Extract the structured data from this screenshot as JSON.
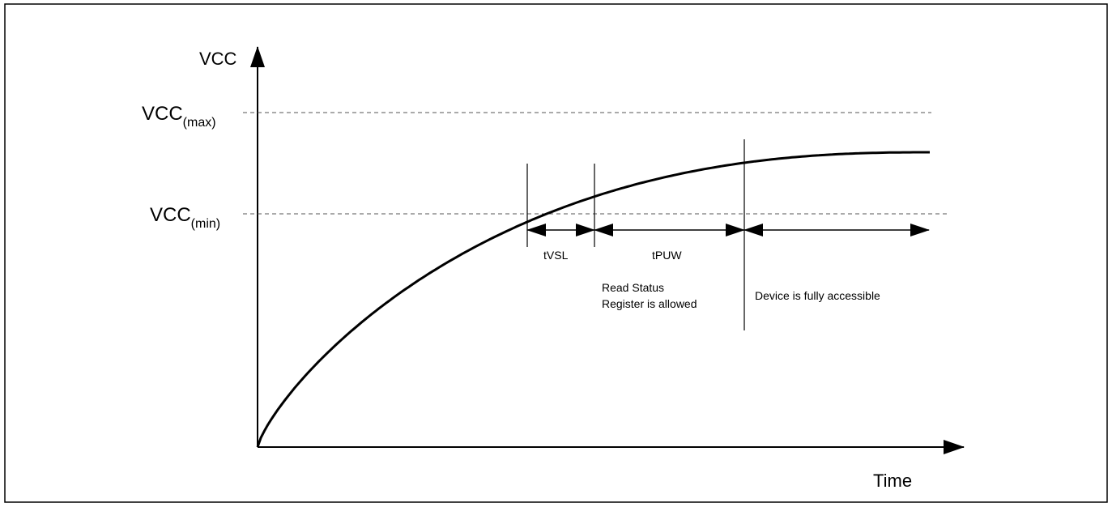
{
  "diagram": {
    "y_axis_label": "VCC",
    "x_axis_label": "Time",
    "vcc_max": {
      "main": "VCC",
      "sub": "(max)"
    },
    "vcc_min": {
      "main": "VCC",
      "sub": "(min)"
    },
    "intervals": {
      "tvsl": "tVSL",
      "tpuw": "tPUW"
    },
    "phases": {
      "read_status": [
        "Read Status",
        "Register is allowed"
      ],
      "fully_accessible": "Device is fully accessible"
    },
    "colors": {
      "ink": "#000000",
      "background": "#ffffff",
      "dashed": "#555555"
    }
  }
}
